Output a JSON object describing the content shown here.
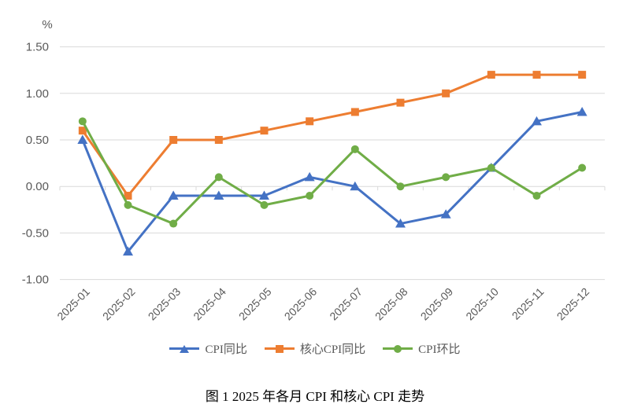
{
  "caption": "图 1  2025 年各月 CPI 和核心 CPI 走势",
  "colors": {
    "gridline": "#d9d9d9",
    "axis_text": "#595959",
    "cpi_yoy_blue": "#4472c4",
    "core_cpi_yoy_orange": "#ed7d31",
    "cpi_mom_green": "#70ad47"
  },
  "chart_data": {
    "type": "line",
    "title": "图 1  2025 年各月 CPI 和核心 CPI 走势",
    "unit_label": "%",
    "xlabel": "",
    "ylabel": "%",
    "ylim": [
      -1.0,
      1.5
    ],
    "grid": true,
    "legend_position": "bottom",
    "categories": [
      "2025-01",
      "2025-02",
      "2025-03",
      "2025-04",
      "2025-05",
      "2025-06",
      "2025-07",
      "2025-08",
      "2025-09",
      "2025-10",
      "2025-11",
      "2025-12"
    ],
    "yticks": [
      1.5,
      1.0,
      0.5,
      0.0,
      -0.5,
      -1.0
    ],
    "ytick_labels": [
      "1.50",
      "1.00",
      "0.50",
      "0.00",
      "-0.50",
      "-1.00"
    ],
    "series": [
      {
        "name": "CPI同比",
        "color": "#4472c4",
        "marker": "triangle",
        "values": [
          0.5,
          -0.7,
          -0.1,
          -0.1,
          -0.1,
          0.1,
          0.0,
          -0.4,
          -0.3,
          0.2,
          0.7,
          0.8
        ]
      },
      {
        "name": "核心CPI同比",
        "color": "#ed7d31",
        "marker": "square",
        "values": [
          0.6,
          -0.1,
          0.5,
          0.5,
          0.6,
          0.7,
          0.8,
          0.9,
          1.0,
          1.2,
          1.2,
          1.2
        ]
      },
      {
        "name": "CPI环比",
        "color": "#70ad47",
        "marker": "circle",
        "values": [
          0.7,
          -0.2,
          -0.4,
          0.1,
          -0.2,
          -0.1,
          0.4,
          0.0,
          0.1,
          0.2,
          -0.1,
          0.2
        ]
      }
    ]
  }
}
